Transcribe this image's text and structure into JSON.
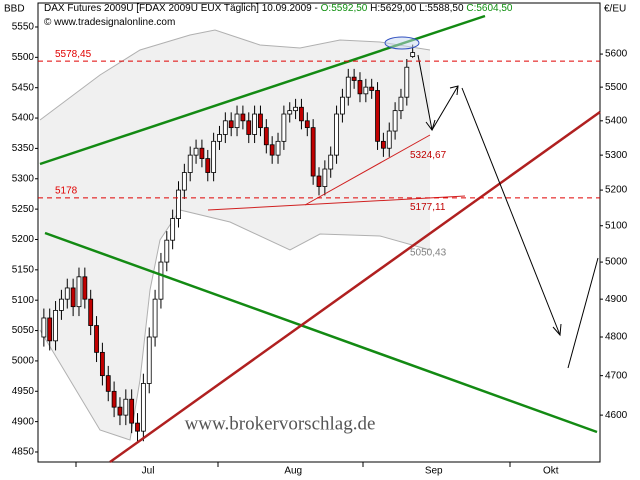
{
  "chart_data": {
    "type": "candlestick",
    "header": {
      "title": "DAX Futures 2009U [FDAX 2009U EUX  Täglich] 10.09.2009 -",
      "open": "O:5592,50",
      "high_low": "H:5629,00 L:5588,50",
      "close": "C:5604,50"
    },
    "copyright": "© www.tradesignalonline.com",
    "watermark": "www.brokervorschlag.de",
    "y_label": "BBD",
    "y2_label": "€/EU",
    "xlim": [
      -1,
      95
    ],
    "month_labels": [
      {
        "value": 17.8,
        "label": "Jul"
      },
      {
        "value": 42.6,
        "label": "Aug"
      },
      {
        "value": 66.6,
        "label": "Sep"
      },
      {
        "value": 86.6,
        "label": "Okt"
      }
    ],
    "ylim": [
      4833.5,
      5589.5
    ],
    "yticks": [
      4850,
      4900,
      4950,
      5000,
      5050,
      5100,
      5150,
      5200,
      5250,
      5300,
      5350,
      5400,
      5450,
      5500,
      5550
    ],
    "y2lim": [
      4484,
      5758
    ],
    "y2_log": true,
    "y2ticks": [
      4600,
      4700,
      4800,
      4900,
      5000,
      5100,
      5200,
      5300,
      5400,
      5500,
      5600
    ],
    "up_color": "#ffffff",
    "down_color": "#c00000",
    "series": [
      {
        "axis": "y2",
        "open": [
          4800,
          4850,
          4790,
          4870,
          4900,
          4930,
          4880,
          4960,
          4900,
          4830,
          4760,
          4700,
          4660,
          4620,
          4600,
          4640,
          4580,
          4560,
          4680,
          4800,
          4900,
          5000,
          5060,
          5120,
          5200,
          5250,
          5300,
          5320,
          5290,
          5250,
          5340,
          5360,
          5400,
          5380,
          5420,
          5400,
          5360,
          5420,
          5380,
          5330,
          5300,
          5340,
          5420,
          5430,
          5440,
          5400,
          5380,
          5240,
          5210,
          5260,
          5300,
          5420,
          5470,
          5530,
          5520,
          5480,
          5500,
          5490,
          5340,
          5320,
          5370,
          5430,
          5470,
          5592.5
        ],
        "high": [
          4875,
          4875,
          4895,
          4925,
          4955,
          4955,
          4985,
          4985,
          4925,
          4855,
          4785,
          4725,
          4685,
          4645,
          4665,
          4665,
          4605,
          4705,
          4825,
          4925,
          5025,
          5085,
          5145,
          5225,
          5275,
          5325,
          5345,
          5345,
          5315,
          5365,
          5385,
          5425,
          5425,
          5445,
          5445,
          5425,
          5445,
          5445,
          5405,
          5355,
          5365,
          5445,
          5455,
          5465,
          5465,
          5425,
          5405,
          5265,
          5285,
          5325,
          5445,
          5495,
          5555,
          5555,
          5545,
          5525,
          5525,
          5515,
          5365,
          5395,
          5455,
          5495,
          5585,
          5629
        ],
        "low": [
          4775,
          4765,
          4765,
          4845,
          4875,
          4855,
          4855,
          4875,
          4805,
          4735,
          4675,
          4635,
          4595,
          4575,
          4575,
          4555,
          4535,
          4535,
          4655,
          4775,
          4875,
          4975,
          5035,
          5095,
          5175,
          5225,
          5275,
          5265,
          5225,
          5225,
          5315,
          5335,
          5355,
          5355,
          5375,
          5335,
          5335,
          5355,
          5305,
          5275,
          5275,
          5315,
          5395,
          5405,
          5375,
          5355,
          5215,
          5185,
          5185,
          5235,
          5275,
          5395,
          5445,
          5495,
          5455,
          5455,
          5465,
          5315,
          5295,
          5295,
          5345,
          5405,
          5445,
          5588.5
        ],
        "close": [
          4850,
          4790,
          4870,
          4900,
          4930,
          4880,
          4960,
          4900,
          4830,
          4760,
          4700,
          4660,
          4620,
          4600,
          4640,
          4580,
          4560,
          4680,
          4800,
          4900,
          5000,
          5060,
          5120,
          5200,
          5250,
          5300,
          5320,
          5290,
          5250,
          5340,
          5360,
          5400,
          5380,
          5420,
          5400,
          5360,
          5420,
          5380,
          5330,
          5300,
          5340,
          5420,
          5430,
          5440,
          5400,
          5380,
          5240,
          5210,
          5260,
          5300,
          5420,
          5470,
          5530,
          5520,
          5480,
          5500,
          5490,
          5340,
          5320,
          5370,
          5430,
          5470,
          5560,
          5604.5
        ]
      }
    ],
    "levels": [
      {
        "value": 5578.45,
        "label": "5578,45"
      },
      5178
    ],
    "level_color": "#e00000",
    "annotations": [
      {
        "value": 5324.67,
        "label": "5324,67",
        "color": "#c00000"
      },
      {
        "value": 5177.11,
        "label": "5177,11",
        "color": "#c00000"
      },
      {
        "value": 5050.43,
        "label": "5050,43",
        "color": "#808080"
      }
    ]
  }
}
